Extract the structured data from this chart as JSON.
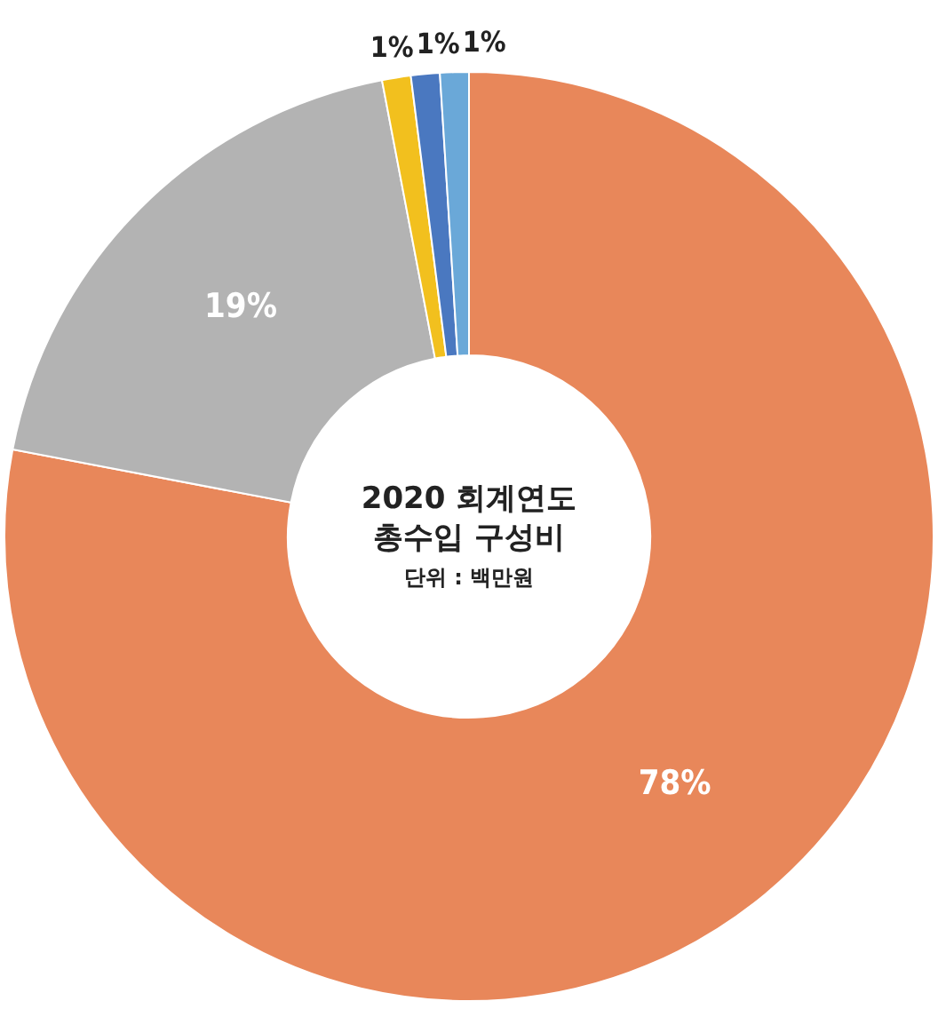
{
  "chart_data": {
    "type": "donut",
    "title": "2020 회계연도",
    "subtitle": "총수입 구성비",
    "annotations": [
      "단위 : 백만원"
    ],
    "categories": [
      null,
      null,
      null,
      null,
      null
    ],
    "values": [
      78,
      19,
      1,
      1,
      1
    ],
    "value_labels": [
      "78%",
      "19%",
      "1%",
      "1%",
      "1%"
    ],
    "colors": [
      "#e8875a",
      "#b3b3b3",
      "#f2c01e",
      "#4a78c0",
      "#6aa8d8"
    ],
    "legend": false
  }
}
